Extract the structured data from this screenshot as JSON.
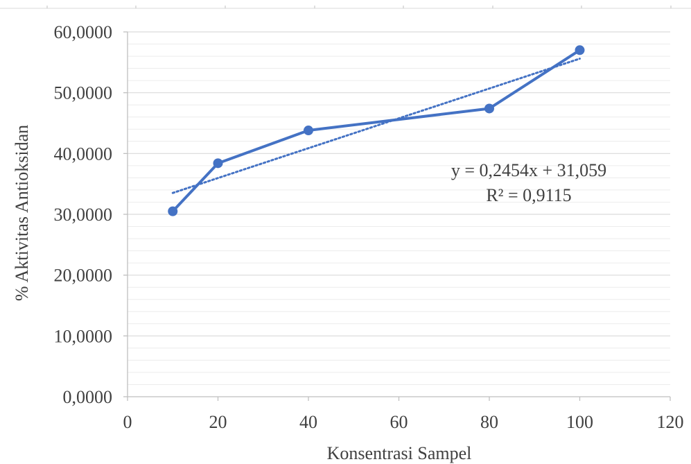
{
  "chart_data": {
    "type": "line",
    "title": "",
    "xlabel": "Konsentrasi Sampel",
    "ylabel": "% Aktivitas Antioksidan",
    "xlim": [
      0,
      120
    ],
    "ylim": [
      0,
      60
    ],
    "x_ticks": [
      0,
      20,
      40,
      60,
      80,
      100,
      120
    ],
    "y_ticks": [
      0,
      10,
      20,
      30,
      40,
      50,
      60
    ],
    "x_tick_labels": [
      "0",
      "20",
      "40",
      "60",
      "80",
      "100",
      "120"
    ],
    "y_tick_labels": [
      "0,0000",
      "10,0000",
      "20,0000",
      "30,0000",
      "40,0000",
      "50,0000",
      "60,0000"
    ],
    "grid": true,
    "minor_grid": true,
    "legend": "none",
    "series": [
      {
        "x": [
          10,
          20,
          40,
          80,
          100
        ],
        "values": [
          30.5,
          38.4,
          43.8,
          47.4,
          57.0
        ],
        "color": "#4472C4",
        "marker": "circle"
      }
    ],
    "trendline": {
      "type": "linear",
      "slope": 0.2454,
      "intercept": 31.059,
      "x_range": [
        10,
        100
      ],
      "color": "#4472C4",
      "style": "dotted",
      "equation_label": "y = 0,2454x + 31,059",
      "r2_label": "R² = 0,9115"
    }
  }
}
